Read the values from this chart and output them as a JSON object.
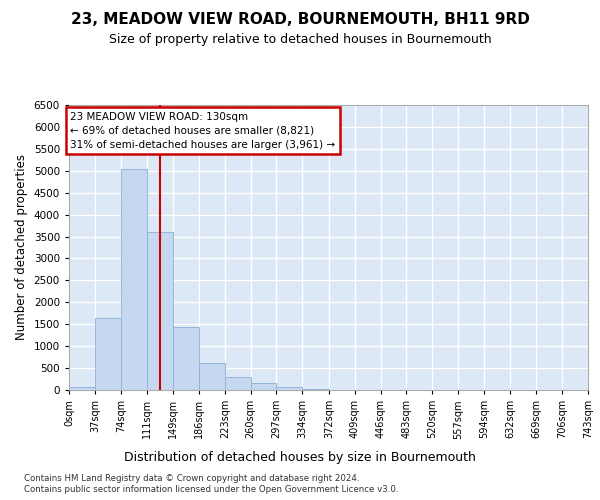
{
  "title": "23, MEADOW VIEW ROAD, BOURNEMOUTH, BH11 9RD",
  "subtitle": "Size of property relative to detached houses in Bournemouth",
  "xlabel": "Distribution of detached houses by size in Bournemouth",
  "ylabel": "Number of detached properties",
  "bar_color": "#c5d8f0",
  "bar_edge_color": "#8ab0d8",
  "plot_bg_color": "#dce8f5",
  "fig_bg_color": "#ffffff",
  "grid_color": "#ffffff",
  "property_line_x": 130,
  "property_line_color": "#cc0000",
  "annotation_text": "23 MEADOW VIEW ROAD: 130sqm\n← 69% of detached houses are smaller (8,821)\n31% of semi-detached houses are larger (3,961) →",
  "bin_edges": [
    0,
    37,
    74,
    111,
    149,
    186,
    223,
    260,
    297,
    334,
    372,
    409,
    446,
    483,
    520,
    557,
    594,
    632,
    669,
    706,
    743
  ],
  "bin_labels": [
    "0sqm",
    "37sqm",
    "74sqm",
    "111sqm",
    "149sqm",
    "186sqm",
    "223sqm",
    "260sqm",
    "297sqm",
    "334sqm",
    "372sqm",
    "409sqm",
    "446sqm",
    "483sqm",
    "520sqm",
    "557sqm",
    "594sqm",
    "632sqm",
    "669sqm",
    "706sqm",
    "743sqm"
  ],
  "bar_heights": [
    70,
    1650,
    5050,
    3600,
    1430,
    610,
    300,
    150,
    70,
    30,
    10,
    5,
    5,
    0,
    0,
    0,
    0,
    0,
    0,
    0
  ],
  "ylim": [
    0,
    6500
  ],
  "yticks": [
    0,
    500,
    1000,
    1500,
    2000,
    2500,
    3000,
    3500,
    4000,
    4500,
    5000,
    5500,
    6000,
    6500
  ],
  "footnote1": "Contains HM Land Registry data © Crown copyright and database right 2024.",
  "footnote2": "Contains public sector information licensed under the Open Government Licence v3.0."
}
